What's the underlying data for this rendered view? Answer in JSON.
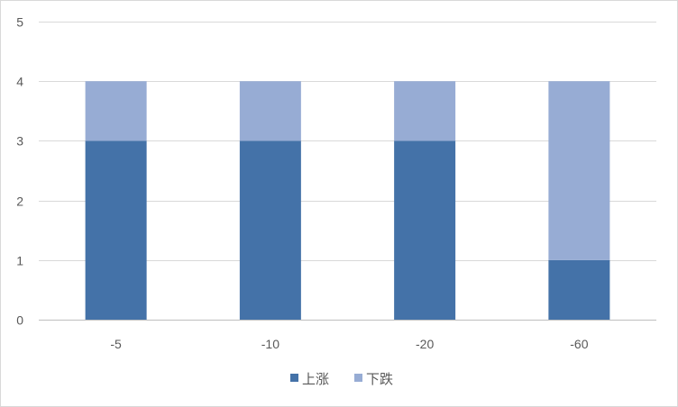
{
  "chart_data": {
    "type": "bar",
    "stacked": true,
    "categories": [
      "-5",
      "-10",
      "-20",
      "-60"
    ],
    "series": [
      {
        "name": "上涨",
        "values": [
          3,
          3,
          3,
          1
        ],
        "color": "#4472A8"
      },
      {
        "name": "下跌",
        "values": [
          1,
          1,
          1,
          3
        ],
        "color": "#97ACD4"
      }
    ],
    "ylim": [
      0,
      5
    ],
    "yticks": [
      0,
      1,
      2,
      3,
      4,
      5
    ],
    "grid": true,
    "legend_position": "bottom",
    "title": "",
    "xlabel": "",
    "ylabel": ""
  },
  "colors": {
    "grid": "#d9d9d9",
    "axis": "#bfbfbf",
    "text": "#595959"
  }
}
